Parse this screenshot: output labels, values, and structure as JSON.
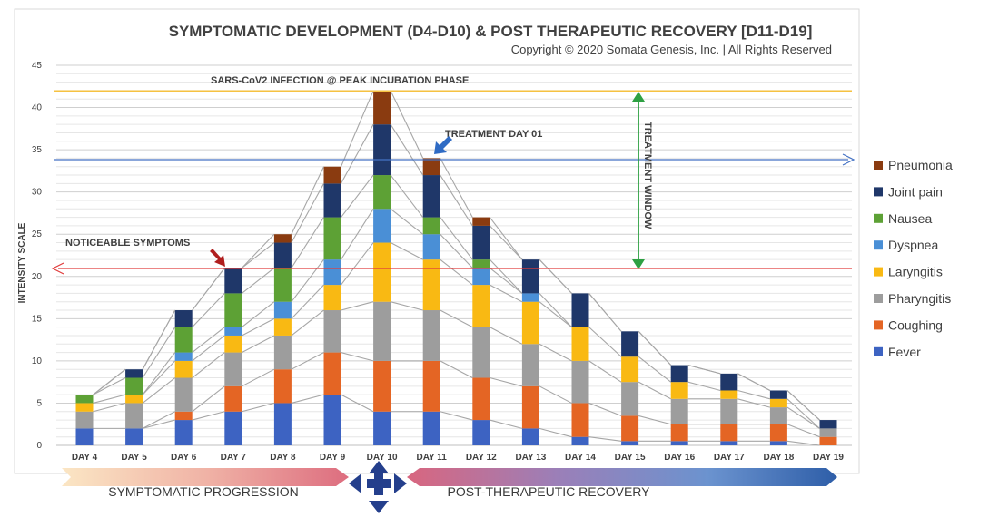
{
  "title": "SYMPTOMATIC DEVELOPMENT (D4-D10) & POST THERAPEUTIC RECOVERY [D11-D19]",
  "copyright": "Copyright © 2020 Somata Genesis, Inc. | All Rights Reserved",
  "colors": {
    "Fever": "#3d63c2",
    "Coughing": "#e46524",
    "Pharyngitis": "#9d9d9d",
    "Laryngitis": "#f9b913",
    "Dyspnea": "#4a8fd6",
    "Nausea": "#5da135",
    "Joint pain": "#1f3769",
    "Pneumonia": "#8a3b10"
  },
  "chart_data": {
    "type": "bar",
    "stacked": true,
    "categories": [
      "DAY 4",
      "DAY 5",
      "DAY 6",
      "DAY 7",
      "DAY 8",
      "DAY 9",
      "DAY 10",
      "DAY 11",
      "DAY 12",
      "DAY 13",
      "DAY 14",
      "DAY 15",
      "DAY 16",
      "DAY 17",
      "DAY 18",
      "DAY 19"
    ],
    "series": [
      {
        "name": "Fever",
        "values": [
          2,
          2,
          3,
          4,
          5,
          6,
          4,
          4,
          3,
          2,
          1,
          0.5,
          0.5,
          0.5,
          0.5,
          0
        ]
      },
      {
        "name": "Coughing",
        "values": [
          0,
          0,
          1,
          3,
          4,
          5,
          6,
          6,
          5,
          5,
          4,
          3,
          2,
          2,
          2,
          1
        ]
      },
      {
        "name": "Pharyngitis",
        "values": [
          2,
          3,
          4,
          4,
          4,
          5,
          7,
          6,
          6,
          5,
          5,
          4,
          3,
          3,
          2,
          1
        ]
      },
      {
        "name": "Laryngitis",
        "values": [
          1,
          1,
          2,
          2,
          2,
          3,
          7,
          6,
          5,
          5,
          4,
          3,
          2,
          1,
          1,
          0
        ]
      },
      {
        "name": "Dyspnea",
        "values": [
          0,
          0,
          1,
          1,
          2,
          3,
          4,
          3,
          2,
          1,
          0,
          0,
          0,
          0,
          0,
          0
        ]
      },
      {
        "name": "Nausea",
        "values": [
          1,
          2,
          3,
          4,
          4,
          5,
          4,
          2,
          1,
          0,
          0,
          0,
          0,
          0,
          0,
          0
        ]
      },
      {
        "name": "Joint pain",
        "values": [
          0,
          1,
          2,
          3,
          3,
          4,
          6,
          5,
          4,
          4,
          4,
          3,
          2,
          2,
          1,
          1
        ]
      },
      {
        "name": "Pneumonia",
        "values": [
          0,
          0,
          0,
          0,
          1,
          2,
          4,
          2,
          1,
          0,
          0,
          0,
          0,
          0,
          0,
          0
        ]
      }
    ],
    "ylabel": "INTENSITY SCALE",
    "ylim": [
      0,
      45
    ],
    "yticks": [
      0,
      5,
      10,
      15,
      20,
      25,
      30,
      35,
      40,
      45
    ],
    "grid": true,
    "legend": "right",
    "reference_lines": [
      {
        "label": "SARS-CoV2 INFECTION @ PEAK INCUBATION PHASE",
        "y": 42
      },
      {
        "label": "TREATMENT DAY 01",
        "y": 34
      },
      {
        "label": "NOTICEABLE SYMPTOMS",
        "y": 21
      }
    ],
    "treatment_window": {
      "label": "TREATMENT WINDOW",
      "from": 21,
      "to": 42
    }
  },
  "bottom": {
    "left_label": "SYMPTOMATIC PROGRESSION",
    "right_label": "POST-THERAPEUTIC RECOVERY"
  }
}
